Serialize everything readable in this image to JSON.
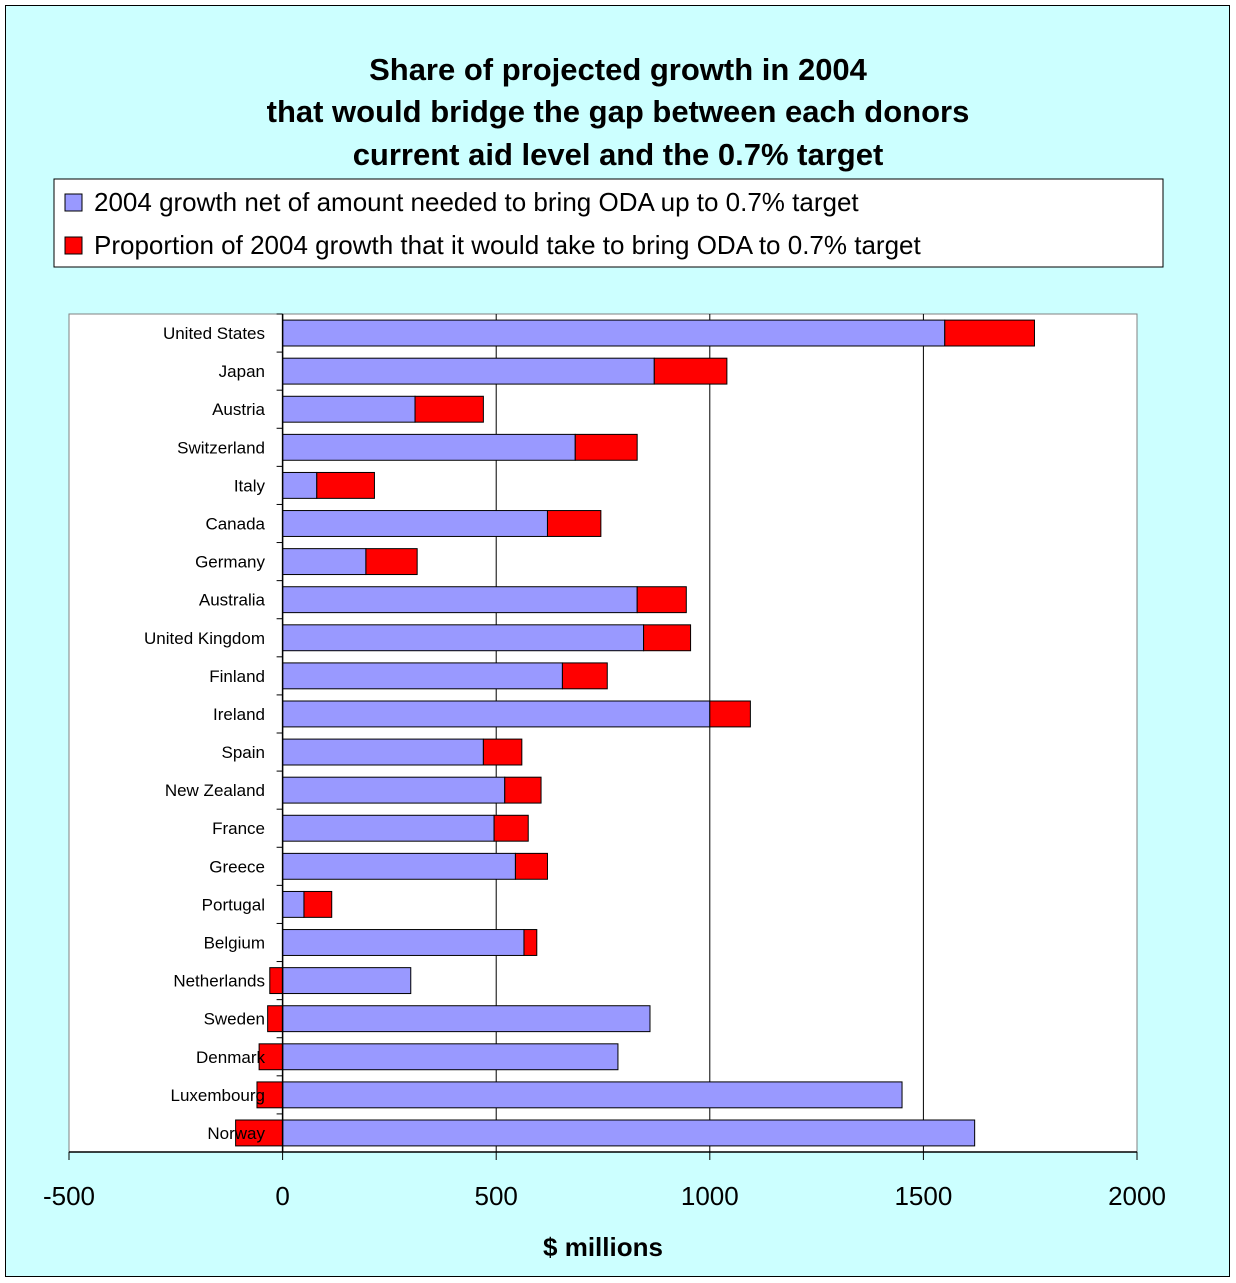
{
  "chart_data": {
    "type": "bar",
    "orientation": "horizontal",
    "stacked": true,
    "title": [
      "Share of projected growth in 2004",
      "that would bridge the gap between each donors",
      "current aid level and the 0.7% target"
    ],
    "xlabel": "$ millions",
    "ylabel": "",
    "xlim": [
      -500,
      2000
    ],
    "xticks": [
      "-500",
      "0",
      "500",
      "1000",
      "1500",
      "2000"
    ],
    "xtick_values": [
      -500,
      0,
      500,
      1000,
      1500,
      2000
    ],
    "grid": "vertical lines",
    "legend_position": "top",
    "categories": [
      "United States",
      "Japan",
      "Austria",
      "Switzerland",
      "Italy",
      "Canada",
      "Germany",
      "Australia",
      "United Kingdom",
      "Finland",
      "Ireland",
      "Spain",
      "New Zealand",
      "France",
      "Greece",
      "Portugal",
      "Belgium",
      "Netherlands",
      "Sweden",
      "Denmark",
      "Luxembourg",
      "Norway"
    ],
    "series": [
      {
        "name": "2004 growth net of amount needed to bring ODA up to 0.7% target",
        "color": "#9999ff",
        "values": [
          1550,
          870,
          310,
          685,
          80,
          620,
          195,
          830,
          845,
          655,
          1000,
          470,
          520,
          495,
          545,
          50,
          565,
          300,
          860,
          785,
          1450,
          1620
        ]
      },
      {
        "name": "Proportion of 2004 growth that it would take to bring ODA to 0.7% target",
        "color": "#ff0000",
        "values": [
          210,
          170,
          160,
          145,
          135,
          125,
          120,
          115,
          110,
          105,
          95,
          90,
          85,
          80,
          75,
          65,
          30,
          -30,
          -35,
          -55,
          -60,
          -110
        ]
      }
    ]
  }
}
